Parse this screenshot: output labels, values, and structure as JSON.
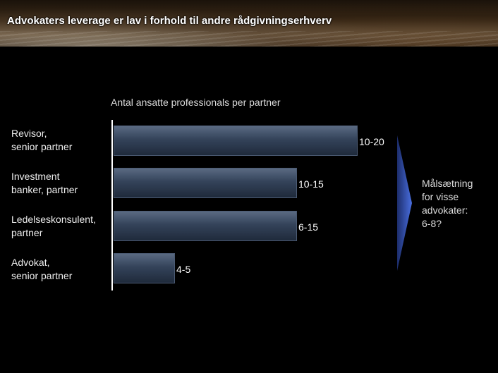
{
  "title": "Advokaters leverage er lav i forhold til andre rådgivningserhverv",
  "chart_data": {
    "type": "bar",
    "orientation": "horizontal",
    "title": "Antal ansatte professionals per partner",
    "categories": [
      [
        "Revisor,",
        "senior partner"
      ],
      [
        "Investment",
        "banker, partner"
      ],
      [
        "Ledelseskonsulent,",
        "partner"
      ],
      [
        "Advokat,",
        "senior partner"
      ]
    ],
    "ranges": [
      [
        10,
        20
      ],
      [
        10,
        15
      ],
      [
        6,
        15
      ],
      [
        4,
        5
      ]
    ],
    "value_labels": [
      "10-20",
      "10-15",
      "6-15",
      "4-5"
    ],
    "bar_color": "#34435a"
  },
  "annotation": {
    "lines": [
      "Målsætning",
      "for visse",
      "advokater:",
      "6-8?"
    ],
    "arrow_color": "#3a5bc4"
  }
}
